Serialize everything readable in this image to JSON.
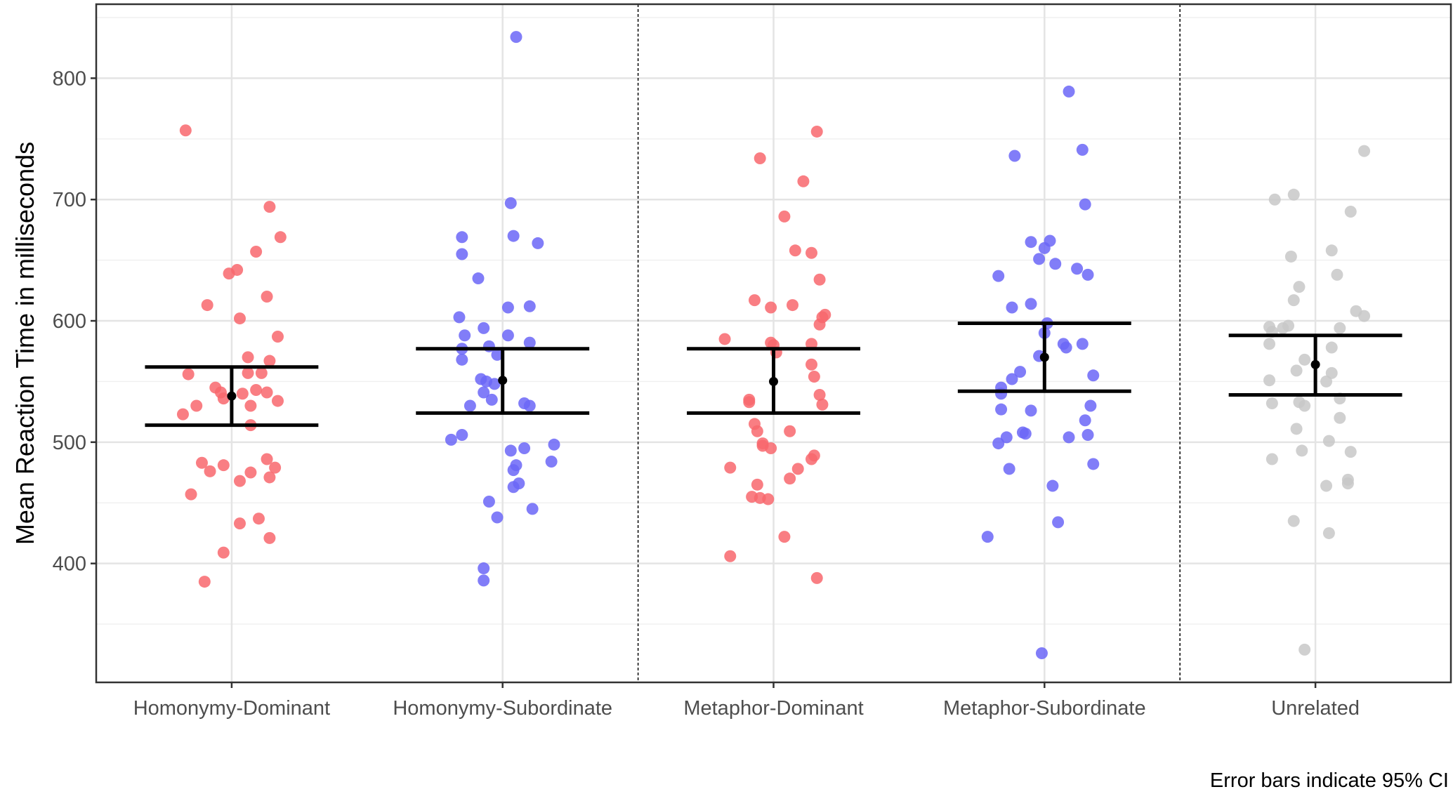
{
  "chart_data": {
    "type": "scatter",
    "ylabel": "Mean Reaction Time in milliseconds",
    "xlabel": "",
    "caption": "Error bars indicate 95% CI",
    "categories": [
      "Homonymy-Dominant",
      "Homonymy-Subordinate",
      "Metaphor-Dominant",
      "Metaphor-Subordinate",
      "Unrelated"
    ],
    "ylim": [
      302,
      861
    ],
    "yticks": [
      400,
      500,
      600,
      700,
      800
    ],
    "grid": true,
    "legend": "none",
    "separators_after": [
      1,
      3
    ],
    "colors": {
      "red": "#f8676d",
      "blue": "#6b66f7",
      "gray": "#c8c8c8",
      "error_bar": "#000000"
    },
    "series": [
      {
        "category": "Homonymy-Dominant",
        "color": "red",
        "mean": 538,
        "ci": [
          514,
          562
        ],
        "points": [
          {
            "x": -0.17,
            "y": 757
          },
          {
            "x": 0.14,
            "y": 694
          },
          {
            "x": 0.18,
            "y": 669
          },
          {
            "x": 0.09,
            "y": 657
          },
          {
            "x": 0.02,
            "y": 642
          },
          {
            "x": -0.01,
            "y": 639
          },
          {
            "x": 0.13,
            "y": 620
          },
          {
            "x": -0.09,
            "y": 613
          },
          {
            "x": 0.03,
            "y": 602
          },
          {
            "x": 0.17,
            "y": 587
          },
          {
            "x": 0.06,
            "y": 570
          },
          {
            "x": 0.14,
            "y": 567
          },
          {
            "x": 0.06,
            "y": 557
          },
          {
            "x": 0.11,
            "y": 557
          },
          {
            "x": -0.16,
            "y": 556
          },
          {
            "x": 0.09,
            "y": 543
          },
          {
            "x": -0.06,
            "y": 545
          },
          {
            "x": -0.04,
            "y": 541
          },
          {
            "x": 0.04,
            "y": 540
          },
          {
            "x": 0.13,
            "y": 541
          },
          {
            "x": -0.03,
            "y": 536
          },
          {
            "x": 0.17,
            "y": 534
          },
          {
            "x": -0.13,
            "y": 530
          },
          {
            "x": 0.07,
            "y": 530
          },
          {
            "x": -0.18,
            "y": 523
          },
          {
            "x": 0.07,
            "y": 514
          },
          {
            "x": 0.13,
            "y": 486
          },
          {
            "x": -0.11,
            "y": 483
          },
          {
            "x": -0.03,
            "y": 481
          },
          {
            "x": 0.16,
            "y": 479
          },
          {
            "x": -0.08,
            "y": 476
          },
          {
            "x": 0.07,
            "y": 475
          },
          {
            "x": 0.14,
            "y": 471
          },
          {
            "x": 0.03,
            "y": 468
          },
          {
            "x": -0.15,
            "y": 457
          },
          {
            "x": 0.1,
            "y": 437
          },
          {
            "x": 0.03,
            "y": 433
          },
          {
            "x": 0.14,
            "y": 421
          },
          {
            "x": -0.03,
            "y": 409
          },
          {
            "x": -0.1,
            "y": 385
          }
        ]
      },
      {
        "category": "Homonymy-Subordinate",
        "color": "blue",
        "mean": 551,
        "ci": [
          524,
          577
        ],
        "points": [
          {
            "x": 0.05,
            "y": 834
          },
          {
            "x": 0.03,
            "y": 697
          },
          {
            "x": -0.15,
            "y": 669
          },
          {
            "x": 0.04,
            "y": 670
          },
          {
            "x": 0.13,
            "y": 664
          },
          {
            "x": -0.15,
            "y": 655
          },
          {
            "x": -0.09,
            "y": 635
          },
          {
            "x": 0.1,
            "y": 612
          },
          {
            "x": 0.02,
            "y": 611
          },
          {
            "x": -0.16,
            "y": 603
          },
          {
            "x": -0.07,
            "y": 594
          },
          {
            "x": 0.02,
            "y": 588
          },
          {
            "x": -0.14,
            "y": 588
          },
          {
            "x": 0.1,
            "y": 582
          },
          {
            "x": -0.05,
            "y": 579
          },
          {
            "x": -0.15,
            "y": 577
          },
          {
            "x": -0.02,
            "y": 572
          },
          {
            "x": -0.15,
            "y": 568
          },
          {
            "x": -0.08,
            "y": 552
          },
          {
            "x": -0.06,
            "y": 550
          },
          {
            "x": -0.03,
            "y": 548
          },
          {
            "x": -0.07,
            "y": 541
          },
          {
            "x": -0.04,
            "y": 535
          },
          {
            "x": 0.08,
            "y": 532
          },
          {
            "x": -0.12,
            "y": 530
          },
          {
            "x": 0.1,
            "y": 530
          },
          {
            "x": -0.15,
            "y": 506
          },
          {
            "x": -0.19,
            "y": 502
          },
          {
            "x": 0.19,
            "y": 498
          },
          {
            "x": 0.08,
            "y": 495
          },
          {
            "x": 0.03,
            "y": 493
          },
          {
            "x": 0.18,
            "y": 484
          },
          {
            "x": 0.05,
            "y": 481
          },
          {
            "x": 0.04,
            "y": 477
          },
          {
            "x": 0.06,
            "y": 466
          },
          {
            "x": 0.04,
            "y": 463
          },
          {
            "x": -0.05,
            "y": 451
          },
          {
            "x": 0.11,
            "y": 445
          },
          {
            "x": -0.02,
            "y": 438
          },
          {
            "x": -0.07,
            "y": 396
          },
          {
            "x": -0.07,
            "y": 386
          }
        ]
      },
      {
        "category": "Metaphor-Dominant",
        "color": "red",
        "mean": 550,
        "ci": [
          524,
          577
        ],
        "points": [
          {
            "x": 0.16,
            "y": 756
          },
          {
            "x": -0.05,
            "y": 734
          },
          {
            "x": 0.11,
            "y": 715
          },
          {
            "x": 0.04,
            "y": 686
          },
          {
            "x": 0.08,
            "y": 658
          },
          {
            "x": 0.14,
            "y": 656
          },
          {
            "x": 0.17,
            "y": 634
          },
          {
            "x": -0.07,
            "y": 617
          },
          {
            "x": 0.07,
            "y": 613
          },
          {
            "x": -0.01,
            "y": 611
          },
          {
            "x": 0.19,
            "y": 605
          },
          {
            "x": 0.18,
            "y": 603
          },
          {
            "x": 0.17,
            "y": 597
          },
          {
            "x": -0.18,
            "y": 585
          },
          {
            "x": -0.01,
            "y": 582
          },
          {
            "x": 0.0,
            "y": 580
          },
          {
            "x": 0.14,
            "y": 581
          },
          {
            "x": 0.01,
            "y": 574
          },
          {
            "x": 0.14,
            "y": 564
          },
          {
            "x": 0.15,
            "y": 554
          },
          {
            "x": 0.17,
            "y": 539
          },
          {
            "x": -0.09,
            "y": 535
          },
          {
            "x": -0.09,
            "y": 533
          },
          {
            "x": 0.18,
            "y": 531
          },
          {
            "x": -0.07,
            "y": 515
          },
          {
            "x": -0.06,
            "y": 509
          },
          {
            "x": 0.06,
            "y": 509
          },
          {
            "x": -0.04,
            "y": 499
          },
          {
            "x": -0.04,
            "y": 497
          },
          {
            "x": -0.01,
            "y": 495
          },
          {
            "x": 0.15,
            "y": 489
          },
          {
            "x": 0.14,
            "y": 486
          },
          {
            "x": -0.16,
            "y": 479
          },
          {
            "x": 0.09,
            "y": 478
          },
          {
            "x": 0.06,
            "y": 470
          },
          {
            "x": -0.06,
            "y": 465
          },
          {
            "x": -0.08,
            "y": 455
          },
          {
            "x": -0.05,
            "y": 454
          },
          {
            "x": -0.02,
            "y": 453
          },
          {
            "x": 0.04,
            "y": 422
          },
          {
            "x": -0.16,
            "y": 406
          },
          {
            "x": 0.16,
            "y": 388
          }
        ]
      },
      {
        "category": "Metaphor-Subordinate",
        "color": "blue",
        "mean": 570,
        "ci": [
          542,
          598
        ],
        "points": [
          {
            "x": 0.09,
            "y": 789
          },
          {
            "x": 0.14,
            "y": 741
          },
          {
            "x": -0.11,
            "y": 736
          },
          {
            "x": 0.15,
            "y": 696
          },
          {
            "x": -0.05,
            "y": 665
          },
          {
            "x": 0.02,
            "y": 666
          },
          {
            "x": 0.0,
            "y": 660
          },
          {
            "x": -0.02,
            "y": 651
          },
          {
            "x": 0.04,
            "y": 647
          },
          {
            "x": 0.12,
            "y": 643
          },
          {
            "x": -0.17,
            "y": 637
          },
          {
            "x": 0.16,
            "y": 638
          },
          {
            "x": -0.05,
            "y": 614
          },
          {
            "x": -0.12,
            "y": 611
          },
          {
            "x": 0.01,
            "y": 598
          },
          {
            "x": 0.0,
            "y": 590
          },
          {
            "x": 0.07,
            "y": 581
          },
          {
            "x": 0.14,
            "y": 581
          },
          {
            "x": 0.08,
            "y": 578
          },
          {
            "x": -0.02,
            "y": 571
          },
          {
            "x": -0.09,
            "y": 558
          },
          {
            "x": 0.18,
            "y": 555
          },
          {
            "x": -0.12,
            "y": 552
          },
          {
            "x": -0.16,
            "y": 545
          },
          {
            "x": -0.16,
            "y": 540
          },
          {
            "x": 0.17,
            "y": 530
          },
          {
            "x": -0.16,
            "y": 527
          },
          {
            "x": -0.05,
            "y": 526
          },
          {
            "x": 0.15,
            "y": 518
          },
          {
            "x": -0.08,
            "y": 508
          },
          {
            "x": -0.07,
            "y": 507
          },
          {
            "x": 0.16,
            "y": 506
          },
          {
            "x": -0.14,
            "y": 504
          },
          {
            "x": 0.09,
            "y": 504
          },
          {
            "x": -0.17,
            "y": 499
          },
          {
            "x": 0.18,
            "y": 482
          },
          {
            "x": -0.13,
            "y": 478
          },
          {
            "x": 0.03,
            "y": 464
          },
          {
            "x": 0.05,
            "y": 434
          },
          {
            "x": -0.21,
            "y": 422
          },
          {
            "x": -0.01,
            "y": 326
          }
        ]
      },
      {
        "category": "Unrelated",
        "color": "gray",
        "mean": 564,
        "ci": [
          539,
          588
        ],
        "points": [
          {
            "x": 0.18,
            "y": 740
          },
          {
            "x": -0.08,
            "y": 704
          },
          {
            "x": -0.15,
            "y": 700
          },
          {
            "x": 0.13,
            "y": 690
          },
          {
            "x": 0.06,
            "y": 658
          },
          {
            "x": -0.09,
            "y": 653
          },
          {
            "x": 0.08,
            "y": 638
          },
          {
            "x": -0.06,
            "y": 628
          },
          {
            "x": -0.08,
            "y": 617
          },
          {
            "x": 0.15,
            "y": 608
          },
          {
            "x": 0.18,
            "y": 604
          },
          {
            "x": -0.17,
            "y": 595
          },
          {
            "x": -0.12,
            "y": 594
          },
          {
            "x": -0.1,
            "y": 596
          },
          {
            "x": -0.16,
            "y": 591
          },
          {
            "x": 0.09,
            "y": 594
          },
          {
            "x": -0.17,
            "y": 581
          },
          {
            "x": 0.06,
            "y": 578
          },
          {
            "x": -0.04,
            "y": 568
          },
          {
            "x": -0.07,
            "y": 559
          },
          {
            "x": 0.06,
            "y": 557
          },
          {
            "x": -0.17,
            "y": 551
          },
          {
            "x": 0.04,
            "y": 550
          },
          {
            "x": 0.09,
            "y": 536
          },
          {
            "x": -0.16,
            "y": 532
          },
          {
            "x": -0.06,
            "y": 533
          },
          {
            "x": -0.04,
            "y": 530
          },
          {
            "x": 0.09,
            "y": 520
          },
          {
            "x": -0.07,
            "y": 511
          },
          {
            "x": 0.05,
            "y": 501
          },
          {
            "x": -0.05,
            "y": 493
          },
          {
            "x": 0.13,
            "y": 492
          },
          {
            "x": -0.16,
            "y": 486
          },
          {
            "x": 0.12,
            "y": 469
          },
          {
            "x": 0.12,
            "y": 466
          },
          {
            "x": 0.04,
            "y": 464
          },
          {
            "x": -0.08,
            "y": 435
          },
          {
            "x": 0.05,
            "y": 425
          },
          {
            "x": -0.04,
            "y": 329
          }
        ]
      }
    ]
  }
}
